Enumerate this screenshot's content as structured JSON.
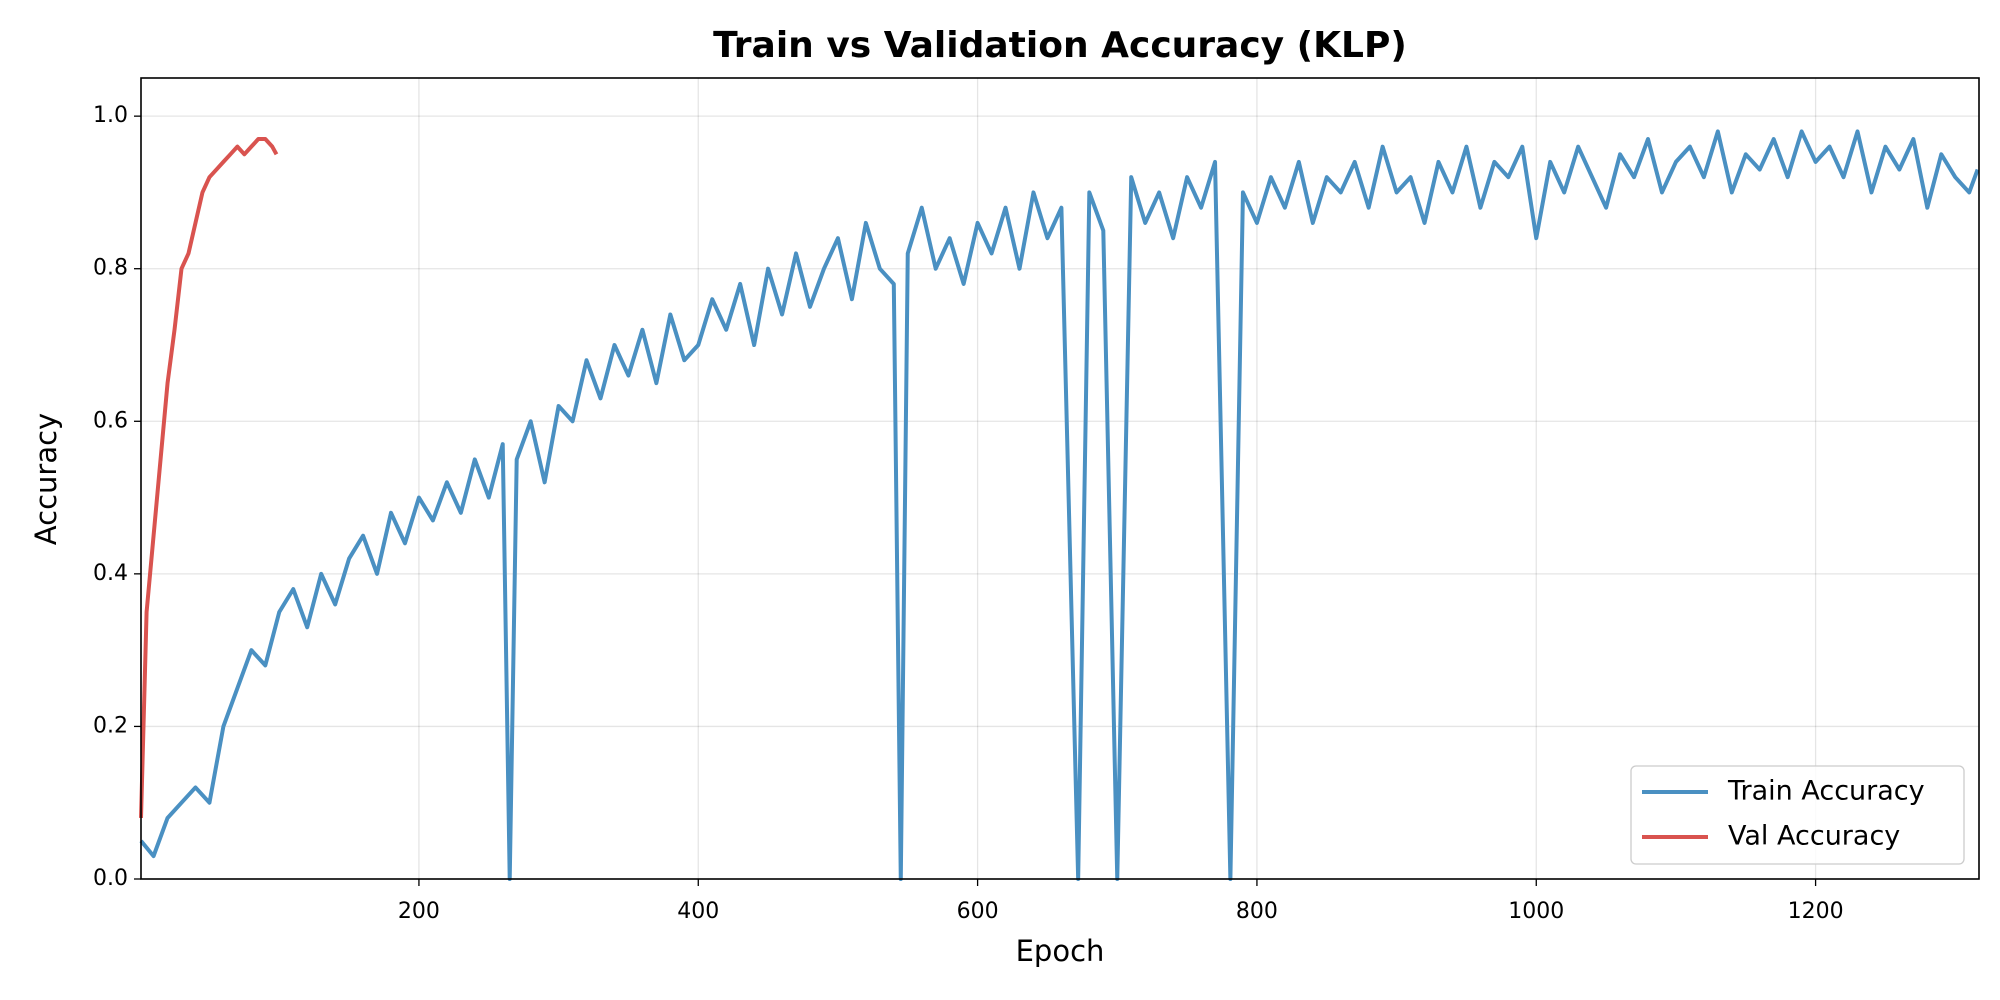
{
  "chart_data": {
    "type": "line",
    "title": "Train vs Validation Accuracy (KLP)",
    "x_label": "Epoch",
    "y_label": "Accuracy",
    "xlim": [
      1,
      1317
    ],
    "xticks": [
      200,
      400,
      600,
      800,
      1000,
      1200
    ],
    "ylim": [
      0,
      1.05
    ],
    "yticks": [
      {
        "value": 0,
        "label": "0.0"
      },
      0.2,
      0.4,
      0.6,
      0.8,
      {
        "value": 1,
        "label": "1.0"
      }
    ],
    "grid": true,
    "legend": "lower right",
    "series": [
      {
        "name": "Train Accuracy",
        "color": "#4a90c2",
        "x": [
          1,
          10,
          20,
          30,
          40,
          50,
          60,
          70,
          80,
          90,
          100,
          110,
          120,
          130,
          140,
          150,
          160,
          170,
          180,
          190,
          200,
          210,
          220,
          230,
          240,
          250,
          260,
          265,
          270,
          280,
          290,
          300,
          310,
          320,
          330,
          340,
          350,
          360,
          370,
          380,
          390,
          400,
          410,
          420,
          430,
          440,
          450,
          460,
          470,
          480,
          490,
          500,
          510,
          520,
          530,
          540,
          545,
          550,
          560,
          570,
          580,
          590,
          600,
          610,
          620,
          630,
          640,
          650,
          660,
          672,
          680,
          690,
          700,
          710,
          720,
          730,
          740,
          750,
          760,
          770,
          781,
          790,
          800,
          810,
          820,
          830,
          840,
          850,
          860,
          870,
          880,
          890,
          900,
          910,
          920,
          930,
          940,
          950,
          960,
          970,
          980,
          990,
          1000,
          1010,
          1020,
          1030,
          1040,
          1050,
          1060,
          1070,
          1080,
          1090,
          1100,
          1110,
          1120,
          1130,
          1140,
          1150,
          1160,
          1170,
          1180,
          1190,
          1200,
          1210,
          1220,
          1230,
          1240,
          1250,
          1260,
          1270,
          1280,
          1290,
          1300,
          1310,
          1316
        ],
        "values": [
          0.05,
          0.03,
          0.08,
          0.1,
          0.12,
          0.1,
          0.2,
          0.25,
          0.3,
          0.28,
          0.35,
          0.38,
          0.33,
          0.4,
          0.36,
          0.42,
          0.45,
          0.4,
          0.48,
          0.44,
          0.5,
          0.47,
          0.52,
          0.48,
          0.55,
          0.5,
          0.57,
          0,
          0.55,
          0.6,
          0.52,
          0.62,
          0.6,
          0.68,
          0.63,
          0.7,
          0.66,
          0.72,
          0.65,
          0.74,
          0.68,
          0.7,
          0.76,
          0.72,
          0.78,
          0.7,
          0.8,
          0.74,
          0.82,
          0.75,
          0.8,
          0.84,
          0.76,
          0.86,
          0.8,
          0.78,
          0,
          0.82,
          0.88,
          0.8,
          0.84,
          0.78,
          0.86,
          0.82,
          0.88,
          0.8,
          0.9,
          0.84,
          0.88,
          0,
          0.9,
          0.85,
          0,
          0.92,
          0.86,
          0.9,
          0.84,
          0.92,
          0.88,
          0.94,
          0,
          0.9,
          0.86,
          0.92,
          0.88,
          0.94,
          0.86,
          0.92,
          0.9,
          0.94,
          0.88,
          0.96,
          0.9,
          0.92,
          0.86,
          0.94,
          0.9,
          0.96,
          0.88,
          0.94,
          0.92,
          0.96,
          0.84,
          0.94,
          0.9,
          0.96,
          0.92,
          0.88,
          0.95,
          0.92,
          0.97,
          0.9,
          0.94,
          0.96,
          0.92,
          0.98,
          0.9,
          0.95,
          0.93,
          0.97,
          0.92,
          0.98,
          0.94,
          0.96,
          0.92,
          0.98,
          0.9,
          0.96,
          0.93,
          0.97,
          0.88,
          0.95,
          0.92,
          0.9,
          0.93
        ]
      },
      {
        "name": "Val Accuracy",
        "color": "#d9534f",
        "x": [
          1,
          5,
          10,
          15,
          20,
          25,
          30,
          35,
          40,
          45,
          50,
          55,
          60,
          65,
          70,
          75,
          80,
          85,
          90,
          95,
          98
        ],
        "values": [
          0.08,
          0.35,
          0.45,
          0.55,
          0.65,
          0.72,
          0.8,
          0.82,
          0.86,
          0.9,
          0.92,
          0.93,
          0.94,
          0.95,
          0.96,
          0.95,
          0.96,
          0.97,
          0.97,
          0.96,
          0.95
        ]
      }
    ]
  }
}
